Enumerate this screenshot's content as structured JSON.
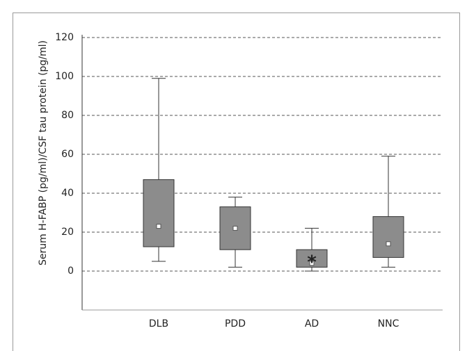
{
  "chart_data": {
    "type": "box",
    "y_label": "Serum H-FABP (pg/ml)/CSF tau protein (pg/ml)",
    "categories": [
      "DLB",
      "PDD",
      "AD",
      "NNC"
    ],
    "low": [
      5,
      2,
      0,
      2
    ],
    "q1": [
      12.5,
      11,
      2,
      7
    ],
    "median": [
      23,
      22,
      4,
      14
    ],
    "q3": [
      47,
      33,
      11,
      28
    ],
    "high": [
      99,
      38,
      22,
      59
    ],
    "color": "#8c8c8c",
    "ylim": [
      -20,
      120
    ],
    "yticks": [
      0,
      20,
      40,
      60,
      80,
      100,
      120
    ],
    "grid": true,
    "annotations": [
      {
        "text": "*",
        "category": "AD"
      }
    ]
  }
}
